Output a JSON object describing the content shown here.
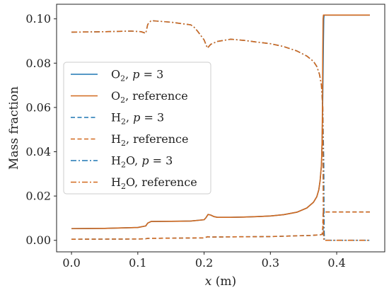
{
  "chart_data": {
    "type": "line",
    "xlabel": "x (m)",
    "xlabel_var": "x",
    "xlabel_unit": " (m)",
    "ylabel": "Mass fraction",
    "xlim": [
      -0.0225,
      0.4725
    ],
    "ylim": [
      -0.0052,
      0.1066
    ],
    "xticks": [
      0.0,
      0.1,
      0.2,
      0.3,
      0.4
    ],
    "xtick_labels": [
      "0.0",
      "0.1",
      "0.2",
      "0.3",
      "0.4"
    ],
    "yticks": [
      0.0,
      0.02,
      0.04,
      0.06,
      0.08,
      0.1
    ],
    "ytick_labels": [
      "0.00",
      "0.02",
      "0.04",
      "0.06",
      "0.08",
      "0.10"
    ],
    "grid": false,
    "legend_position": "center-left",
    "colors": {
      "blue": "#1f77b4",
      "orange": "#d2691e"
    },
    "series": [
      {
        "name": "O2, p = 3",
        "legend": {
          "base": "O",
          "sub": "2",
          "rest": ", ",
          "italic": "p",
          "tail": " = 3"
        },
        "color": "#1f77b4",
        "dash": "solid",
        "x": [
          0.0,
          0.05,
          0.1,
          0.112,
          0.115,
          0.12,
          0.15,
          0.18,
          0.2,
          0.203,
          0.206,
          0.21,
          0.215,
          0.22,
          0.24,
          0.26,
          0.28,
          0.3,
          0.32,
          0.34,
          0.355,
          0.365,
          0.37,
          0.373,
          0.375,
          0.377,
          0.378,
          0.379,
          0.38,
          0.3805,
          0.381,
          0.382,
          0.385,
          0.45
        ],
        "y": [
          0.0053,
          0.0054,
          0.0058,
          0.0065,
          0.0078,
          0.0085,
          0.0086,
          0.0087,
          0.0093,
          0.0103,
          0.0117,
          0.0114,
          0.0107,
          0.0104,
          0.0104,
          0.0105,
          0.0107,
          0.011,
          0.0116,
          0.0127,
          0.0146,
          0.0172,
          0.0197,
          0.0228,
          0.027,
          0.034,
          0.045,
          0.065,
          0.09,
          0.1,
          0.1016,
          0.1017,
          0.1017,
          0.1017
        ]
      },
      {
        "name": "O2, reference",
        "legend": {
          "base": "O",
          "sub": "2",
          "rest": ", reference",
          "italic": "",
          "tail": ""
        },
        "color": "#d2691e",
        "dash": "solid",
        "x": [
          0.0,
          0.05,
          0.1,
          0.112,
          0.115,
          0.12,
          0.15,
          0.18,
          0.2,
          0.203,
          0.206,
          0.21,
          0.215,
          0.22,
          0.24,
          0.26,
          0.28,
          0.3,
          0.32,
          0.34,
          0.355,
          0.365,
          0.37,
          0.373,
          0.375,
          0.377,
          0.378,
          0.3785,
          0.379,
          0.3795,
          0.38,
          0.385,
          0.45
        ],
        "y": [
          0.0053,
          0.0054,
          0.0058,
          0.0065,
          0.0078,
          0.0085,
          0.0086,
          0.0087,
          0.0093,
          0.0103,
          0.0117,
          0.0114,
          0.0107,
          0.0104,
          0.0104,
          0.0105,
          0.0107,
          0.011,
          0.0116,
          0.0127,
          0.0146,
          0.0172,
          0.0197,
          0.0228,
          0.027,
          0.034,
          0.045,
          0.06,
          0.085,
          0.1,
          0.1017,
          0.1017,
          0.1017
        ]
      },
      {
        "name": "H2, p = 3",
        "legend": {
          "base": "H",
          "sub": "2",
          "rest": ", ",
          "italic": "p",
          "tail": " = 3"
        },
        "color": "#1f77b4",
        "dash": "dashed",
        "x": [
          0.0,
          0.1,
          0.112,
          0.115,
          0.2,
          0.205,
          0.21,
          0.3,
          0.36,
          0.375,
          0.3785,
          0.3795,
          0.38,
          0.3805,
          0.381,
          0.45
        ],
        "y": [
          0.0005,
          0.0006,
          0.0007,
          0.0009,
          0.0011,
          0.0016,
          0.0015,
          0.0017,
          0.0022,
          0.0025,
          0.0027,
          0.005,
          0.0115,
          0.0128,
          0.0128,
          0.0128
        ]
      },
      {
        "name": "H2, reference",
        "legend": {
          "base": "H",
          "sub": "2",
          "rest": ", reference",
          "italic": "",
          "tail": ""
        },
        "color": "#d2691e",
        "dash": "dashed",
        "x": [
          0.0,
          0.1,
          0.112,
          0.115,
          0.2,
          0.205,
          0.21,
          0.3,
          0.36,
          0.375,
          0.378,
          0.379,
          0.3795,
          0.38,
          0.45
        ],
        "y": [
          0.0005,
          0.0006,
          0.0007,
          0.0009,
          0.0011,
          0.0016,
          0.0015,
          0.0017,
          0.0022,
          0.0025,
          0.0027,
          0.006,
          0.012,
          0.0128,
          0.0128
        ]
      },
      {
        "name": "H2O, p = 3",
        "legend": {
          "base": "H",
          "sub": "2",
          "rest": "O, ",
          "italic": "p",
          "tail": " = 3"
        },
        "color": "#1f77b4",
        "dash": "dashdot",
        "x": [
          0.0,
          0.05,
          0.09,
          0.105,
          0.112,
          0.115,
          0.12,
          0.15,
          0.18,
          0.185,
          0.19,
          0.2,
          0.205,
          0.21,
          0.22,
          0.24,
          0.26,
          0.28,
          0.3,
          0.32,
          0.34,
          0.355,
          0.365,
          0.37,
          0.374,
          0.377,
          0.379,
          0.3805,
          0.381,
          0.3815,
          0.382,
          0.45
        ],
        "y": [
          0.094,
          0.0942,
          0.0945,
          0.0942,
          0.0935,
          0.0975,
          0.0992,
          0.0985,
          0.0973,
          0.0962,
          0.0945,
          0.0905,
          0.0868,
          0.0885,
          0.0898,
          0.0908,
          0.0903,
          0.0895,
          0.0888,
          0.0875,
          0.0855,
          0.0832,
          0.0808,
          0.0785,
          0.075,
          0.07,
          0.06,
          0.035,
          0.005,
          0.0005,
          0.0,
          0.0
        ]
      },
      {
        "name": "H2O, reference",
        "legend": {
          "base": "H",
          "sub": "2",
          "rest": "O, reference",
          "italic": "",
          "tail": ""
        },
        "color": "#d2691e",
        "dash": "dashdot",
        "x": [
          0.0,
          0.05,
          0.09,
          0.105,
          0.112,
          0.115,
          0.12,
          0.15,
          0.18,
          0.185,
          0.19,
          0.2,
          0.205,
          0.21,
          0.22,
          0.24,
          0.26,
          0.28,
          0.3,
          0.32,
          0.34,
          0.355,
          0.365,
          0.37,
          0.374,
          0.377,
          0.379,
          0.3795,
          0.38,
          0.3805,
          0.45
        ],
        "y": [
          0.094,
          0.0942,
          0.0945,
          0.0942,
          0.0935,
          0.0975,
          0.0992,
          0.0985,
          0.0973,
          0.0962,
          0.0945,
          0.0905,
          0.0868,
          0.0885,
          0.0898,
          0.0908,
          0.0903,
          0.0895,
          0.0888,
          0.0875,
          0.0855,
          0.0832,
          0.0808,
          0.0785,
          0.075,
          0.07,
          0.06,
          0.03,
          0.004,
          0.0,
          0.0
        ]
      }
    ]
  }
}
